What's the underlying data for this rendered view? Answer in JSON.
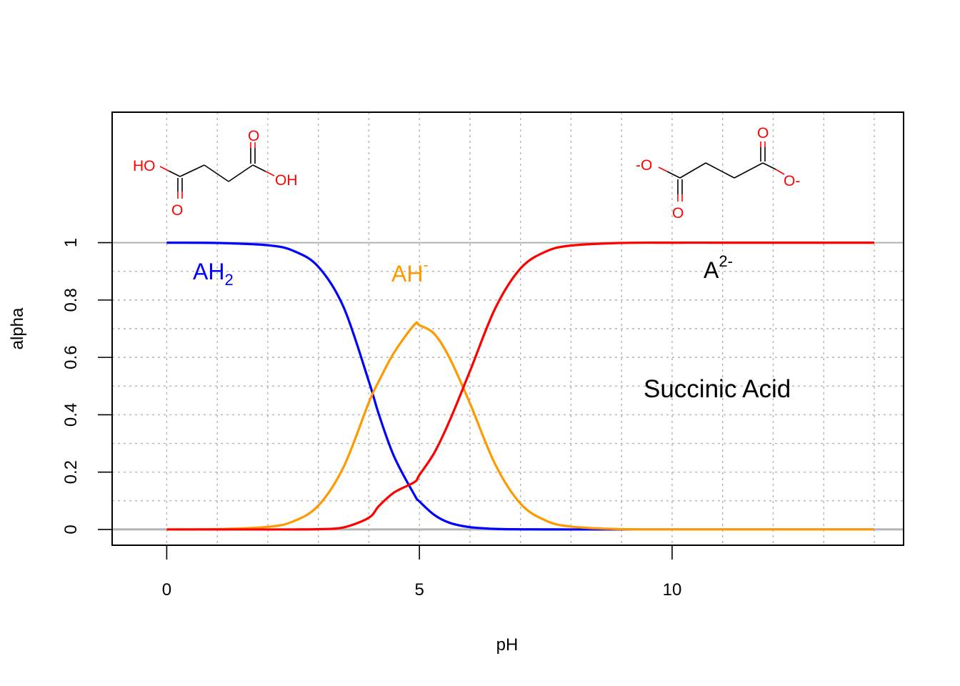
{
  "chart_data": {
    "type": "line",
    "xlabel": "pH",
    "ylabel": "alpha",
    "xlim": [
      -1.08,
      14.58
    ],
    "ylim": [
      -0.055,
      1.455
    ],
    "x_ticks": [
      0,
      5,
      10
    ],
    "y_ticks": [
      0,
      0.2,
      0.4,
      0.6,
      0.8,
      1
    ],
    "grid": true,
    "x": [
      0,
      1,
      2,
      2.5,
      3,
      3.5,
      4,
      4.2,
      4.5,
      4.9,
      5,
      5.3,
      5.6,
      6,
      6.5,
      7,
      7.5,
      8,
      9,
      10,
      11,
      12,
      13,
      14
    ],
    "series": [
      {
        "name": "AH2",
        "color": "#0000ff",
        "values": [
          1.0,
          0.999,
          0.991,
          0.972,
          0.916,
          0.775,
          0.516,
          0.4,
          0.254,
          0.121,
          0.098,
          0.05,
          0.023,
          0.008,
          0.002,
          0.0005,
          0.0001,
          0.0,
          0.0,
          0.0,
          0.0,
          0.0,
          0.0,
          0.0
        ]
      },
      {
        "name": "AH-",
        "color": "#ff9900",
        "values": [
          0.0,
          0.001,
          0.009,
          0.028,
          0.083,
          0.218,
          0.443,
          0.518,
          0.617,
          0.714,
          0.712,
          0.681,
          0.597,
          0.44,
          0.227,
          0.09,
          0.031,
          0.01,
          0.001,
          0.0,
          0.0,
          0.0,
          0.0,
          0.0
        ]
      },
      {
        "name": "A2-",
        "color": "#ff0000",
        "values": [
          0.0,
          0.0,
          0.0,
          0.0,
          0.001,
          0.007,
          0.041,
          0.082,
          0.129,
          0.165,
          0.19,
          0.269,
          0.38,
          0.552,
          0.771,
          0.91,
          0.969,
          0.99,
          0.999,
          1.0,
          1.0,
          1.0,
          1.0,
          1.0
        ]
      }
    ],
    "reference_lines": [
      0,
      1
    ],
    "reference_line_color": "#b3b3b3"
  },
  "labels": {
    "ah2_main": "AH",
    "ah2_sub": "2",
    "ahm_main": "AH",
    "ahm_sup": "-",
    "a2_main": "A",
    "a2_sup": "2-",
    "compound": "Succinic Acid"
  },
  "molecules": {
    "left": {
      "ho": "HO",
      "oh": "OH",
      "o_top": "O",
      "o_bottom": "O"
    },
    "right": {
      "o_minus_left": "-O",
      "o_minus_right": "O-",
      "o_top": "O",
      "o_bottom": "O"
    }
  }
}
